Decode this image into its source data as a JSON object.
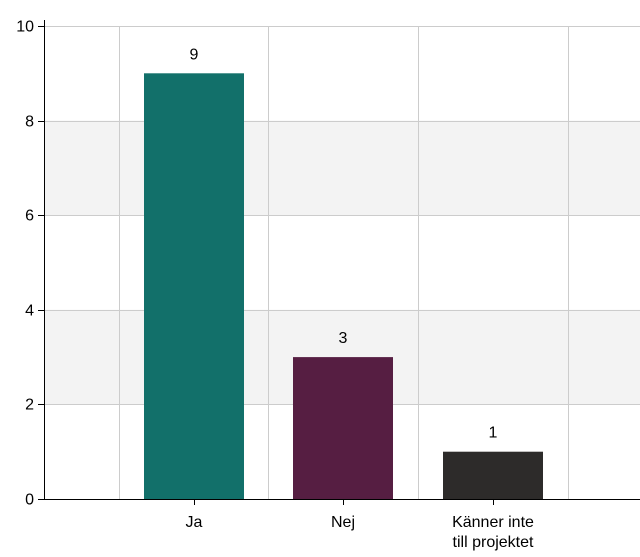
{
  "chart_data": {
    "type": "bar",
    "categories": [
      [
        "Ja"
      ],
      [
        "Nej"
      ],
      [
        "Känner inte",
        "till projektet"
      ]
    ],
    "values": [
      9,
      3,
      1
    ],
    "bar_colors": [
      "#12706a",
      "#561e42",
      "#2d2b2a"
    ],
    "data_labels": [
      "9",
      "3",
      "1"
    ],
    "ylim": [
      0,
      10
    ],
    "yticks": [
      "0",
      "2",
      "4",
      "6",
      "8",
      "10"
    ],
    "grid": true,
    "band_fill": "#f3f3f3",
    "grid_color": "#cccccc",
    "title": "",
    "xlabel": "",
    "ylabel": ""
  }
}
